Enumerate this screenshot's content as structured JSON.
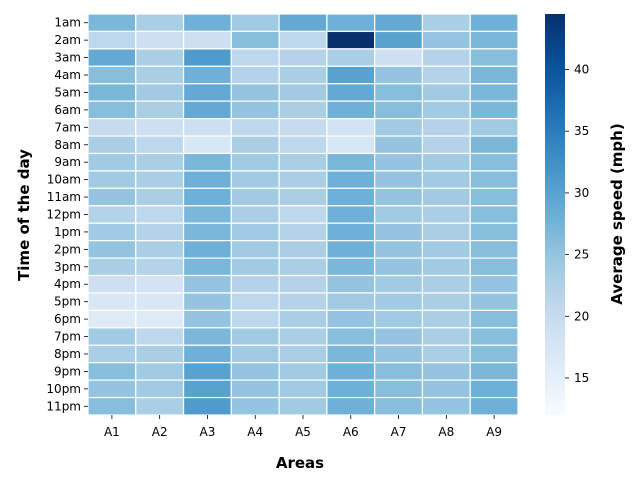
{
  "chart_data": {
    "type": "heatmap",
    "xlabel": "Areas",
    "ylabel": "Time of the day",
    "x_categories": [
      "A1",
      "A2",
      "A3",
      "A4",
      "A5",
      "A6",
      "A7",
      "A8",
      "A9"
    ],
    "y_categories": [
      "1am",
      "2am",
      "3am",
      "4am",
      "5am",
      "6am",
      "7am",
      "8am",
      "9am",
      "10am",
      "11am",
      "12pm",
      "1pm",
      "2pm",
      "3pm",
      "4pm",
      "5pm",
      "6pm",
      "7pm",
      "8pm",
      "9pm",
      "10pm",
      "11pm"
    ],
    "values": [
      [
        27,
        23,
        28,
        24,
        29,
        28,
        29,
        23,
        28
      ],
      [
        21,
        19,
        19,
        26,
        21,
        45,
        30,
        25,
        27
      ],
      [
        29,
        23,
        31,
        21,
        22,
        23,
        19,
        22,
        26
      ],
      [
        26,
        23,
        28,
        22,
        23,
        30,
        25,
        22,
        27
      ],
      [
        27,
        24,
        29,
        25,
        24,
        29,
        26,
        24,
        27
      ],
      [
        26,
        23,
        29,
        25,
        23,
        28,
        26,
        24,
        27
      ],
      [
        20,
        19,
        19,
        21,
        20,
        18,
        24,
        22,
        24
      ],
      [
        23,
        21,
        17,
        23,
        21,
        17,
        25,
        22,
        27
      ],
      [
        24,
        23,
        27,
        24,
        23,
        27,
        25,
        24,
        26
      ],
      [
        24,
        23,
        28,
        24,
        23,
        28,
        25,
        24,
        26
      ],
      [
        25,
        23,
        28,
        24,
        23,
        28,
        25,
        24,
        26
      ],
      [
        22,
        21,
        27,
        23,
        21,
        28,
        24,
        23,
        26
      ],
      [
        24,
        22,
        27,
        24,
        22,
        28,
        25,
        23,
        26
      ],
      [
        25,
        23,
        28,
        24,
        23,
        28,
        25,
        24,
        26
      ],
      [
        23,
        22,
        27,
        24,
        23,
        27,
        25,
        24,
        26
      ],
      [
        19,
        18,
        25,
        22,
        22,
        25,
        24,
        23,
        25
      ],
      [
        17,
        17,
        25,
        21,
        22,
        24,
        24,
        23,
        25
      ],
      [
        16,
        16,
        25,
        21,
        23,
        25,
        24,
        23,
        26
      ],
      [
        24,
        21,
        27,
        24,
        23,
        26,
        25,
        23,
        26
      ],
      [
        23,
        23,
        28,
        24,
        23,
        27,
        25,
        23,
        26
      ],
      [
        26,
        24,
        30,
        25,
        24,
        28,
        26,
        25,
        27
      ],
      [
        25,
        24,
        30,
        25,
        24,
        28,
        26,
        25,
        28
      ],
      [
        26,
        23,
        31,
        25,
        24,
        28,
        26,
        25,
        28
      ]
    ],
    "colorbar": {
      "label": "Average speed (mph)",
      "min": 12,
      "max": 44.5,
      "ticks": [
        15,
        20,
        25,
        30,
        35,
        40
      ]
    },
    "colormap": "Blues",
    "cell_border_color": "#ffffff",
    "grid": false,
    "legend": "colorbar-right"
  }
}
